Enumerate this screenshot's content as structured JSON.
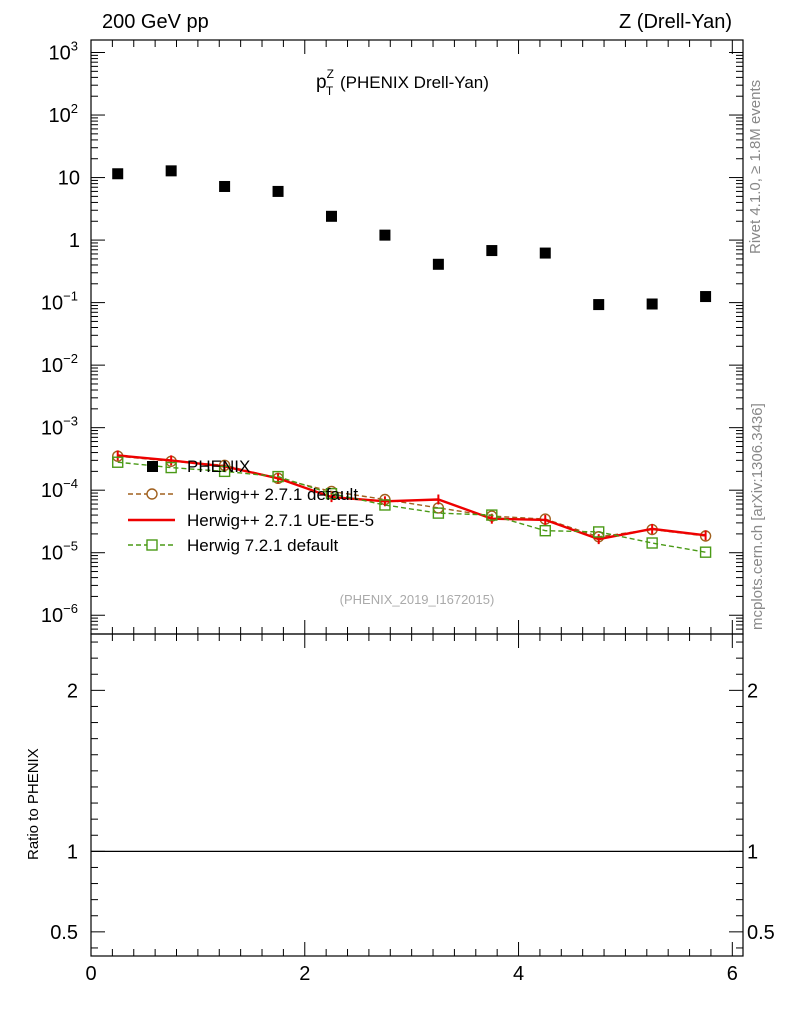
{
  "header": {
    "left": "200 GeV pp",
    "right": "Z (Drell-Yan)"
  },
  "side": {
    "rivet": "Rivet 4.1.0, ≥ 1.8M events",
    "mcplots": "mcplots.cern.ch [arXiv:1306.3436]"
  },
  "chart_data": {
    "type": "scatter",
    "title_main": "p",
    "title_sup": "Z",
    "title_sub": "T",
    "title_rest": " (PHENIX Drell-Yan)",
    "analysis_tag": "(PHENIX_2019_I1672015)",
    "xlim": [
      0,
      6.1
    ],
    "ylim_log10": [
      -6.3,
      3.2
    ],
    "x_ticks": [
      0,
      2,
      4,
      6
    ],
    "y_tick_labels": [
      {
        "base": "10",
        "exp": "3",
        "v": 3
      },
      {
        "base": "10",
        "exp": "2",
        "v": 2
      },
      {
        "base": "10",
        "exp": "",
        "v": 1
      },
      {
        "base": "1",
        "exp": "",
        "v": 0
      },
      {
        "base": "10",
        "exp": "−1",
        "v": -1
      },
      {
        "base": "10",
        "exp": "−2",
        "v": -2
      },
      {
        "base": "10",
        "exp": "−3",
        "v": -3
      },
      {
        "base": "10",
        "exp": "−4",
        "v": -4
      },
      {
        "base": "10",
        "exp": "−5",
        "v": -5
      },
      {
        "base": "10",
        "exp": "−6",
        "v": -6
      }
    ],
    "x": [
      0.25,
      0.75,
      1.25,
      1.75,
      2.25,
      2.75,
      3.25,
      3.75,
      4.25,
      4.75,
      5.25,
      5.75
    ],
    "series": [
      {
        "name": "PHENIX",
        "style": "data",
        "color": "#000000",
        "values": [
          11.5,
          12.8,
          7.2,
          6.0,
          2.4,
          1.2,
          0.41,
          0.68,
          0.62,
          0.093,
          0.095,
          0.125
        ]
      },
      {
        "name": "Herwig++ 2.7.1 default",
        "style": "circle-dashed",
        "color": "#a0601e",
        "values": [
          0.00035,
          0.00029,
          0.00025,
          0.000155,
          9.55e-05,
          7.1e-05,
          5.2e-05,
          3.85e-05,
          3.45e-05,
          1.8e-05,
          2.35e-05,
          1.85e-05
        ]
      },
      {
        "name": "Herwig++ 2.7.1 UE-EE-5",
        "style": "solid",
        "color": "#ee0000",
        "values": [
          0.00036,
          0.0003,
          0.00024,
          0.000155,
          7.75e-05,
          6.65e-05,
          7.1e-05,
          3.5e-05,
          3.35e-05,
          1.65e-05,
          2.4e-05,
          1.9e-05
        ]
      },
      {
        "name": "Herwig 7.2.1 default",
        "style": "square-dashed",
        "color": "#4a9a16",
        "values": [
          0.00028,
          0.00023,
          0.0002,
          0.000165,
          8.8e-05,
          5.8e-05,
          4.3e-05,
          4e-05,
          2.25e-05,
          2.15e-05,
          1.43e-05,
          1.02e-05
        ]
      }
    ],
    "ratio": {
      "ylabel": "Ratio to PHENIX",
      "ylim": [
        0.35,
        2.35
      ],
      "y_ticks": [
        "2",
        "1",
        "0.5"
      ],
      "y_tick_values": [
        2,
        1,
        0.5
      ],
      "reference": 1
    }
  }
}
